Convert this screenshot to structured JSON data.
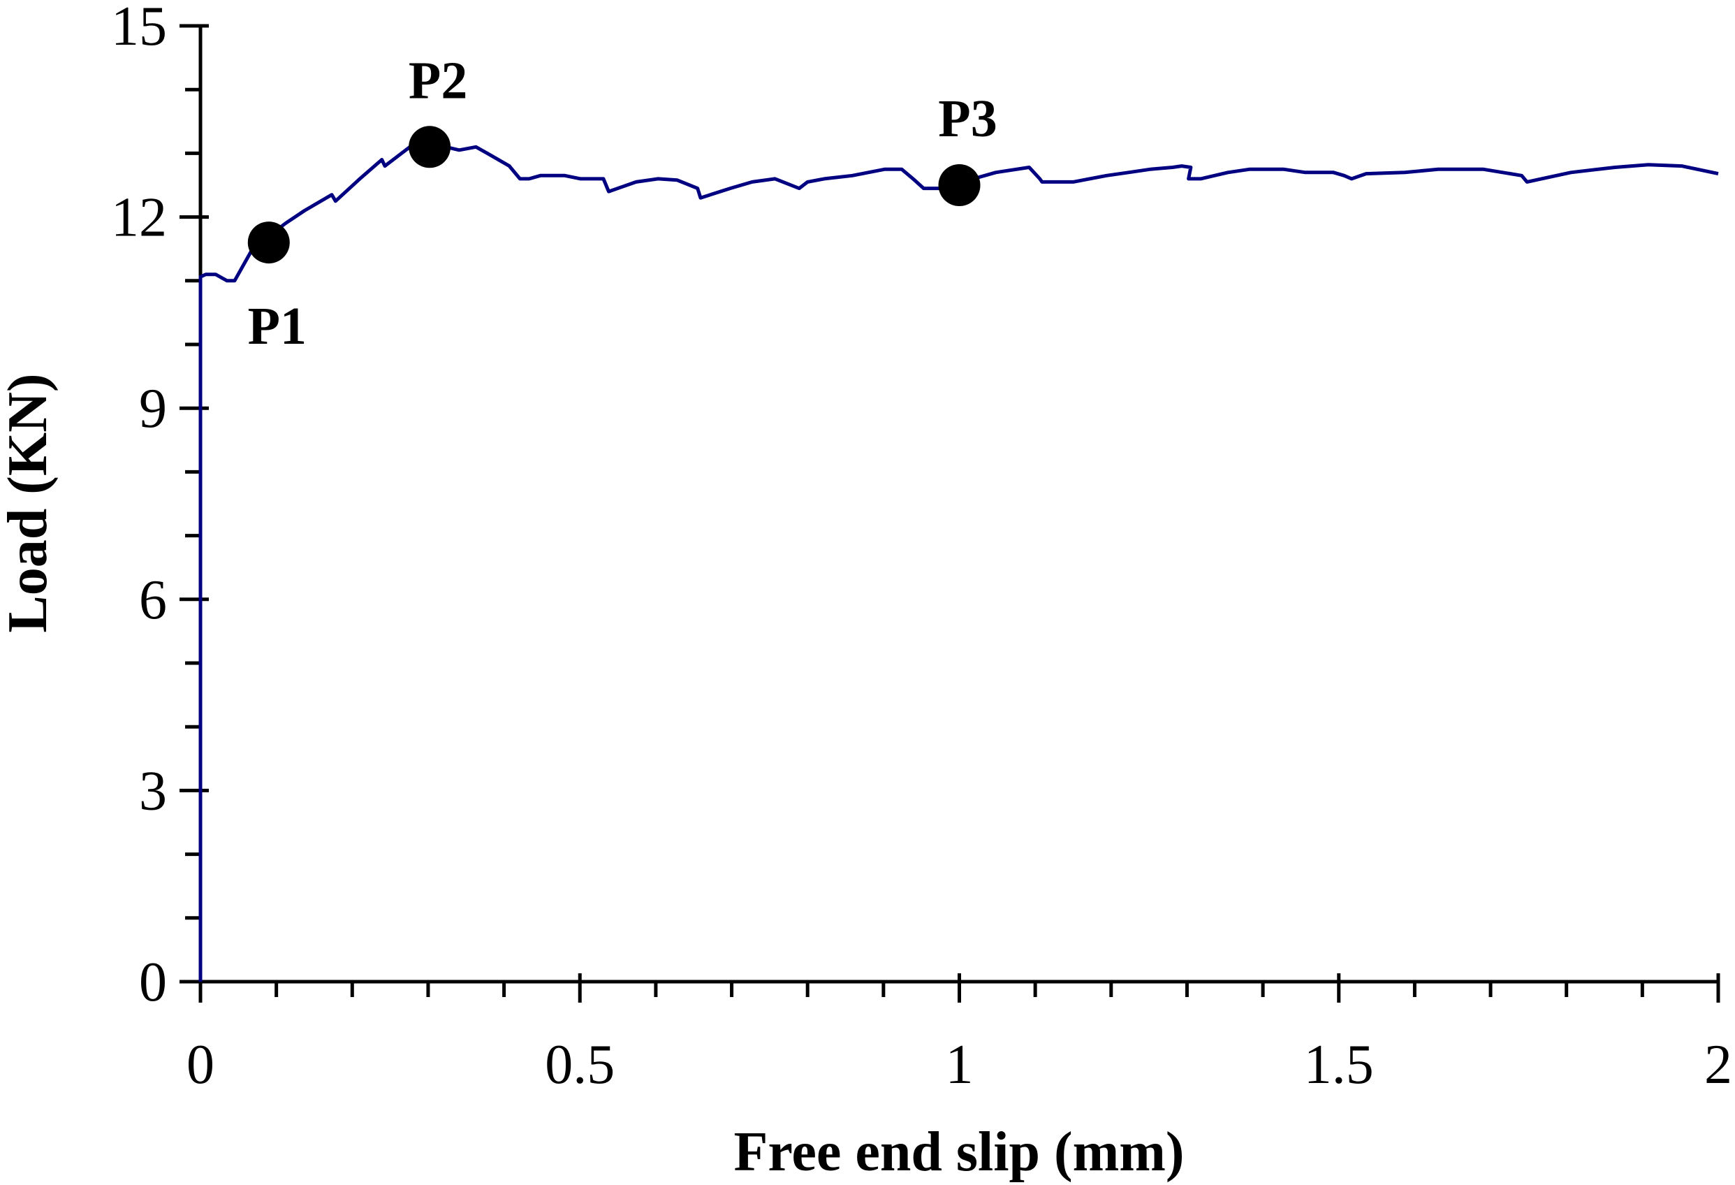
{
  "chart_data": {
    "type": "line",
    "title": "",
    "xlabel": "Free end slip (mm)",
    "ylabel": "Load (KN)",
    "xlim": [
      0,
      2
    ],
    "ylim": [
      0,
      15
    ],
    "x_ticks": [
      0,
      0.5,
      1,
      1.5,
      2
    ],
    "x_tick_labels": [
      "0",
      "0.5",
      "1",
      "1.5",
      "2"
    ],
    "x_minor_step": 0.1,
    "y_ticks": [
      0,
      3,
      6,
      9,
      12,
      15
    ],
    "y_tick_labels": [
      "0",
      "3",
      "6",
      "9",
      "12",
      "15"
    ],
    "y_minor_step": 1,
    "grid": false,
    "line_color": "#000080",
    "marker_color": "#000000",
    "series": [
      {
        "x": [
          0,
          0,
          0.007,
          0.02,
          0.035,
          0.045,
          0.071,
          0.09,
          0.112,
          0.137,
          0.173,
          0.178,
          0.21,
          0.239,
          0.243,
          0.276,
          0.305,
          0.341,
          0.363,
          0.378,
          0.407,
          0.421,
          0.433,
          0.448,
          0.48,
          0.501,
          0.531,
          0.538,
          0.574,
          0.603,
          0.628,
          0.655,
          0.659,
          0.698,
          0.727,
          0.757,
          0.789,
          0.8,
          0.822,
          0.859,
          0.902,
          0.924,
          0.939,
          0.953,
          0.975,
          1.004,
          1.048,
          1.092,
          1.106,
          1.109,
          1.15,
          1.194,
          1.223,
          1.252,
          1.281,
          1.293,
          1.305,
          1.302,
          1.318,
          1.354,
          1.383,
          1.427,
          1.456,
          1.493,
          1.507,
          1.517,
          1.536,
          1.587,
          1.631,
          1.69,
          1.741,
          1.748,
          1.806,
          1.864,
          1.908,
          1.952,
          2.0
        ],
        "y": [
          0,
          11.06,
          11.1,
          11.1,
          11.0,
          11.0,
          11.55,
          11.7,
          11.9,
          12.1,
          12.35,
          12.25,
          12.6,
          12.9,
          12.8,
          13.1,
          13.15,
          13.05,
          13.1,
          13.0,
          12.8,
          12.6,
          12.6,
          12.65,
          12.65,
          12.6,
          12.6,
          12.4,
          12.55,
          12.6,
          12.58,
          12.45,
          12.3,
          12.45,
          12.55,
          12.6,
          12.45,
          12.55,
          12.6,
          12.65,
          12.75,
          12.75,
          12.6,
          12.45,
          12.45,
          12.55,
          12.7,
          12.78,
          12.6,
          12.55,
          12.55,
          12.65,
          12.7,
          12.75,
          12.78,
          12.8,
          12.78,
          12.6,
          12.6,
          12.7,
          12.75,
          12.75,
          12.7,
          12.7,
          12.65,
          12.6,
          12.68,
          12.7,
          12.75,
          12.75,
          12.65,
          12.55,
          12.7,
          12.78,
          12.82,
          12.8,
          12.68
        ]
      }
    ],
    "annotations": [
      {
        "label": "P1",
        "x": 0.09,
        "y": 11.6,
        "label_position": "below"
      },
      {
        "label": "P2",
        "x": 0.302,
        "y": 13.1,
        "label_position": "above"
      },
      {
        "label": "P3",
        "x": 1.0,
        "y": 12.5,
        "label_position": "above"
      }
    ]
  }
}
